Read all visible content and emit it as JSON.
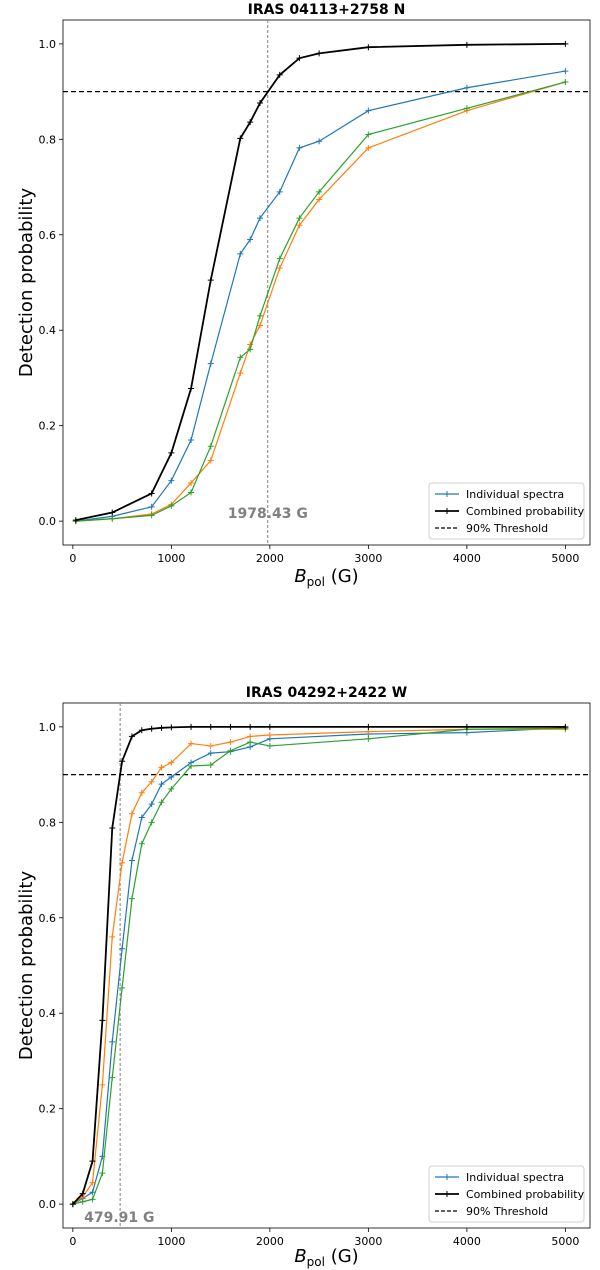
{
  "chart_data": [
    {
      "type": "line",
      "title": "IRAS 04113+2758 N",
      "xlabel": "B",
      "xlabel_sub": "pol",
      "xlabel_unit": " (G)",
      "ylabel": "Detection probability",
      "xlim": [
        -100,
        5250
      ],
      "ylim": [
        -0.05,
        1.05
      ],
      "xticks": [
        0,
        1000,
        2000,
        3000,
        4000,
        5000
      ],
      "yticks": [
        0.0,
        0.2,
        0.4,
        0.6,
        0.8,
        1.0
      ],
      "tick_labels_x": [
        "0",
        "1000",
        "2000",
        "3000",
        "4000",
        "5000"
      ],
      "tick_labels_y": [
        "0.0",
        "0.2",
        "0.4",
        "0.6",
        "0.8",
        "1.0"
      ],
      "threshold": 0.9,
      "vline": 1978.43,
      "annotation": "1978.43 G",
      "legend_position": "lower-right",
      "legend": [
        "Individual spectra",
        "Combined probability",
        "90% Threshold"
      ],
      "series": [
        {
          "color": "#1f77b4",
          "x": [
            30,
            400,
            800,
            1000,
            1200,
            1400,
            1700,
            1800,
            1900,
            2100,
            2300,
            2500,
            3000,
            4000,
            5000
          ],
          "y": [
            0.0,
            0.01,
            0.03,
            0.085,
            0.17,
            0.33,
            0.56,
            0.59,
            0.635,
            0.69,
            0.782,
            0.796,
            0.86,
            0.908,
            0.943
          ]
        },
        {
          "color": "#ff7f0e",
          "x": [
            30,
            400,
            800,
            1000,
            1200,
            1400,
            1700,
            1800,
            1900,
            2100,
            2300,
            2500,
            3000,
            4000,
            5000
          ],
          "y": [
            0.0,
            0.005,
            0.015,
            0.035,
            0.08,
            0.127,
            0.31,
            0.37,
            0.41,
            0.53,
            0.62,
            0.674,
            0.782,
            0.86,
            0.92
          ]
        },
        {
          "color": "#2ca02c",
          "x": [
            30,
            400,
            800,
            1000,
            1200,
            1400,
            1700,
            1800,
            1900,
            2100,
            2300,
            2500,
            3000,
            4000,
            5000
          ],
          "y": [
            0.0,
            0.005,
            0.012,
            0.032,
            0.06,
            0.157,
            0.343,
            0.36,
            0.43,
            0.55,
            0.635,
            0.69,
            0.81,
            0.865,
            0.92
          ]
        },
        {
          "name": "Combined probability",
          "color": "#000000",
          "width": 1.8,
          "x": [
            30,
            400,
            800,
            1000,
            1200,
            1400,
            1700,
            1800,
            1900,
            2100,
            2300,
            2500,
            3000,
            4000,
            5000
          ],
          "y": [
            0.002,
            0.018,
            0.058,
            0.143,
            0.278,
            0.505,
            0.802,
            0.836,
            0.876,
            0.935,
            0.97,
            0.98,
            0.993,
            0.998,
            1.0
          ]
        }
      ]
    },
    {
      "type": "line",
      "title": "IRAS 04292+2422 W",
      "xlabel": "B",
      "xlabel_sub": "pol",
      "xlabel_unit": " (G)",
      "ylabel": "Detection probability",
      "xlim": [
        -100,
        5250
      ],
      "ylim": [
        -0.05,
        1.05
      ],
      "xticks": [
        0,
        1000,
        2000,
        3000,
        4000,
        5000
      ],
      "yticks": [
        0.0,
        0.2,
        0.4,
        0.6,
        0.8,
        1.0
      ],
      "tick_labels_x": [
        "0",
        "1000",
        "2000",
        "3000",
        "4000",
        "5000"
      ],
      "tick_labels_y": [
        "0.0",
        "0.2",
        "0.4",
        "0.6",
        "0.8",
        "1.0"
      ],
      "threshold": 0.9,
      "vline": 479.91,
      "annotation": "479.91 G",
      "legend_position": "lower-right",
      "legend": [
        "Individual spectra",
        "Combined probability",
        "90% Threshold"
      ],
      "series": [
        {
          "color": "#1f77b4",
          "x": [
            0,
            100,
            200,
            300,
            400,
            500,
            600,
            700,
            800,
            900,
            1000,
            1200,
            1400,
            1600,
            1800,
            2000,
            3000,
            4000,
            5000
          ],
          "y": [
            0.0,
            0.012,
            0.025,
            0.1,
            0.34,
            0.535,
            0.72,
            0.81,
            0.838,
            0.88,
            0.895,
            0.925,
            0.945,
            0.948,
            0.958,
            0.975,
            0.985,
            0.988,
            0.998
          ]
        },
        {
          "color": "#ff7f0e",
          "x": [
            0,
            100,
            200,
            300,
            400,
            500,
            600,
            700,
            800,
            900,
            1000,
            1200,
            1400,
            1600,
            1800,
            2000,
            3000,
            4000,
            5000
          ],
          "y": [
            0.0,
            0.015,
            0.045,
            0.25,
            0.56,
            0.715,
            0.818,
            0.862,
            0.885,
            0.915,
            0.925,
            0.965,
            0.96,
            0.968,
            0.98,
            0.983,
            0.99,
            0.995,
            0.995
          ]
        },
        {
          "color": "#2ca02c",
          "x": [
            0,
            100,
            200,
            300,
            400,
            500,
            600,
            700,
            800,
            900,
            1000,
            1200,
            1400,
            1600,
            1800,
            2000,
            3000,
            4000,
            5000
          ],
          "y": [
            0.0,
            0.005,
            0.01,
            0.065,
            0.265,
            0.453,
            0.64,
            0.755,
            0.8,
            0.842,
            0.87,
            0.918,
            0.92,
            0.95,
            0.968,
            0.96,
            0.975,
            0.995,
            0.997
          ]
        },
        {
          "name": "Combined probability",
          "color": "#000000",
          "width": 1.8,
          "x": [
            0,
            100,
            200,
            300,
            400,
            500,
            600,
            700,
            800,
            900,
            1000,
            1200,
            1400,
            1600,
            1800,
            2000,
            3000,
            4000,
            5000
          ],
          "y": [
            0.0,
            0.022,
            0.09,
            0.385,
            0.788,
            0.928,
            0.98,
            0.993,
            0.996,
            0.998,
            0.999,
            1.0,
            1.0,
            1.0,
            1.0,
            1.0,
            1.0,
            1.0,
            1.0
          ]
        }
      ]
    }
  ]
}
